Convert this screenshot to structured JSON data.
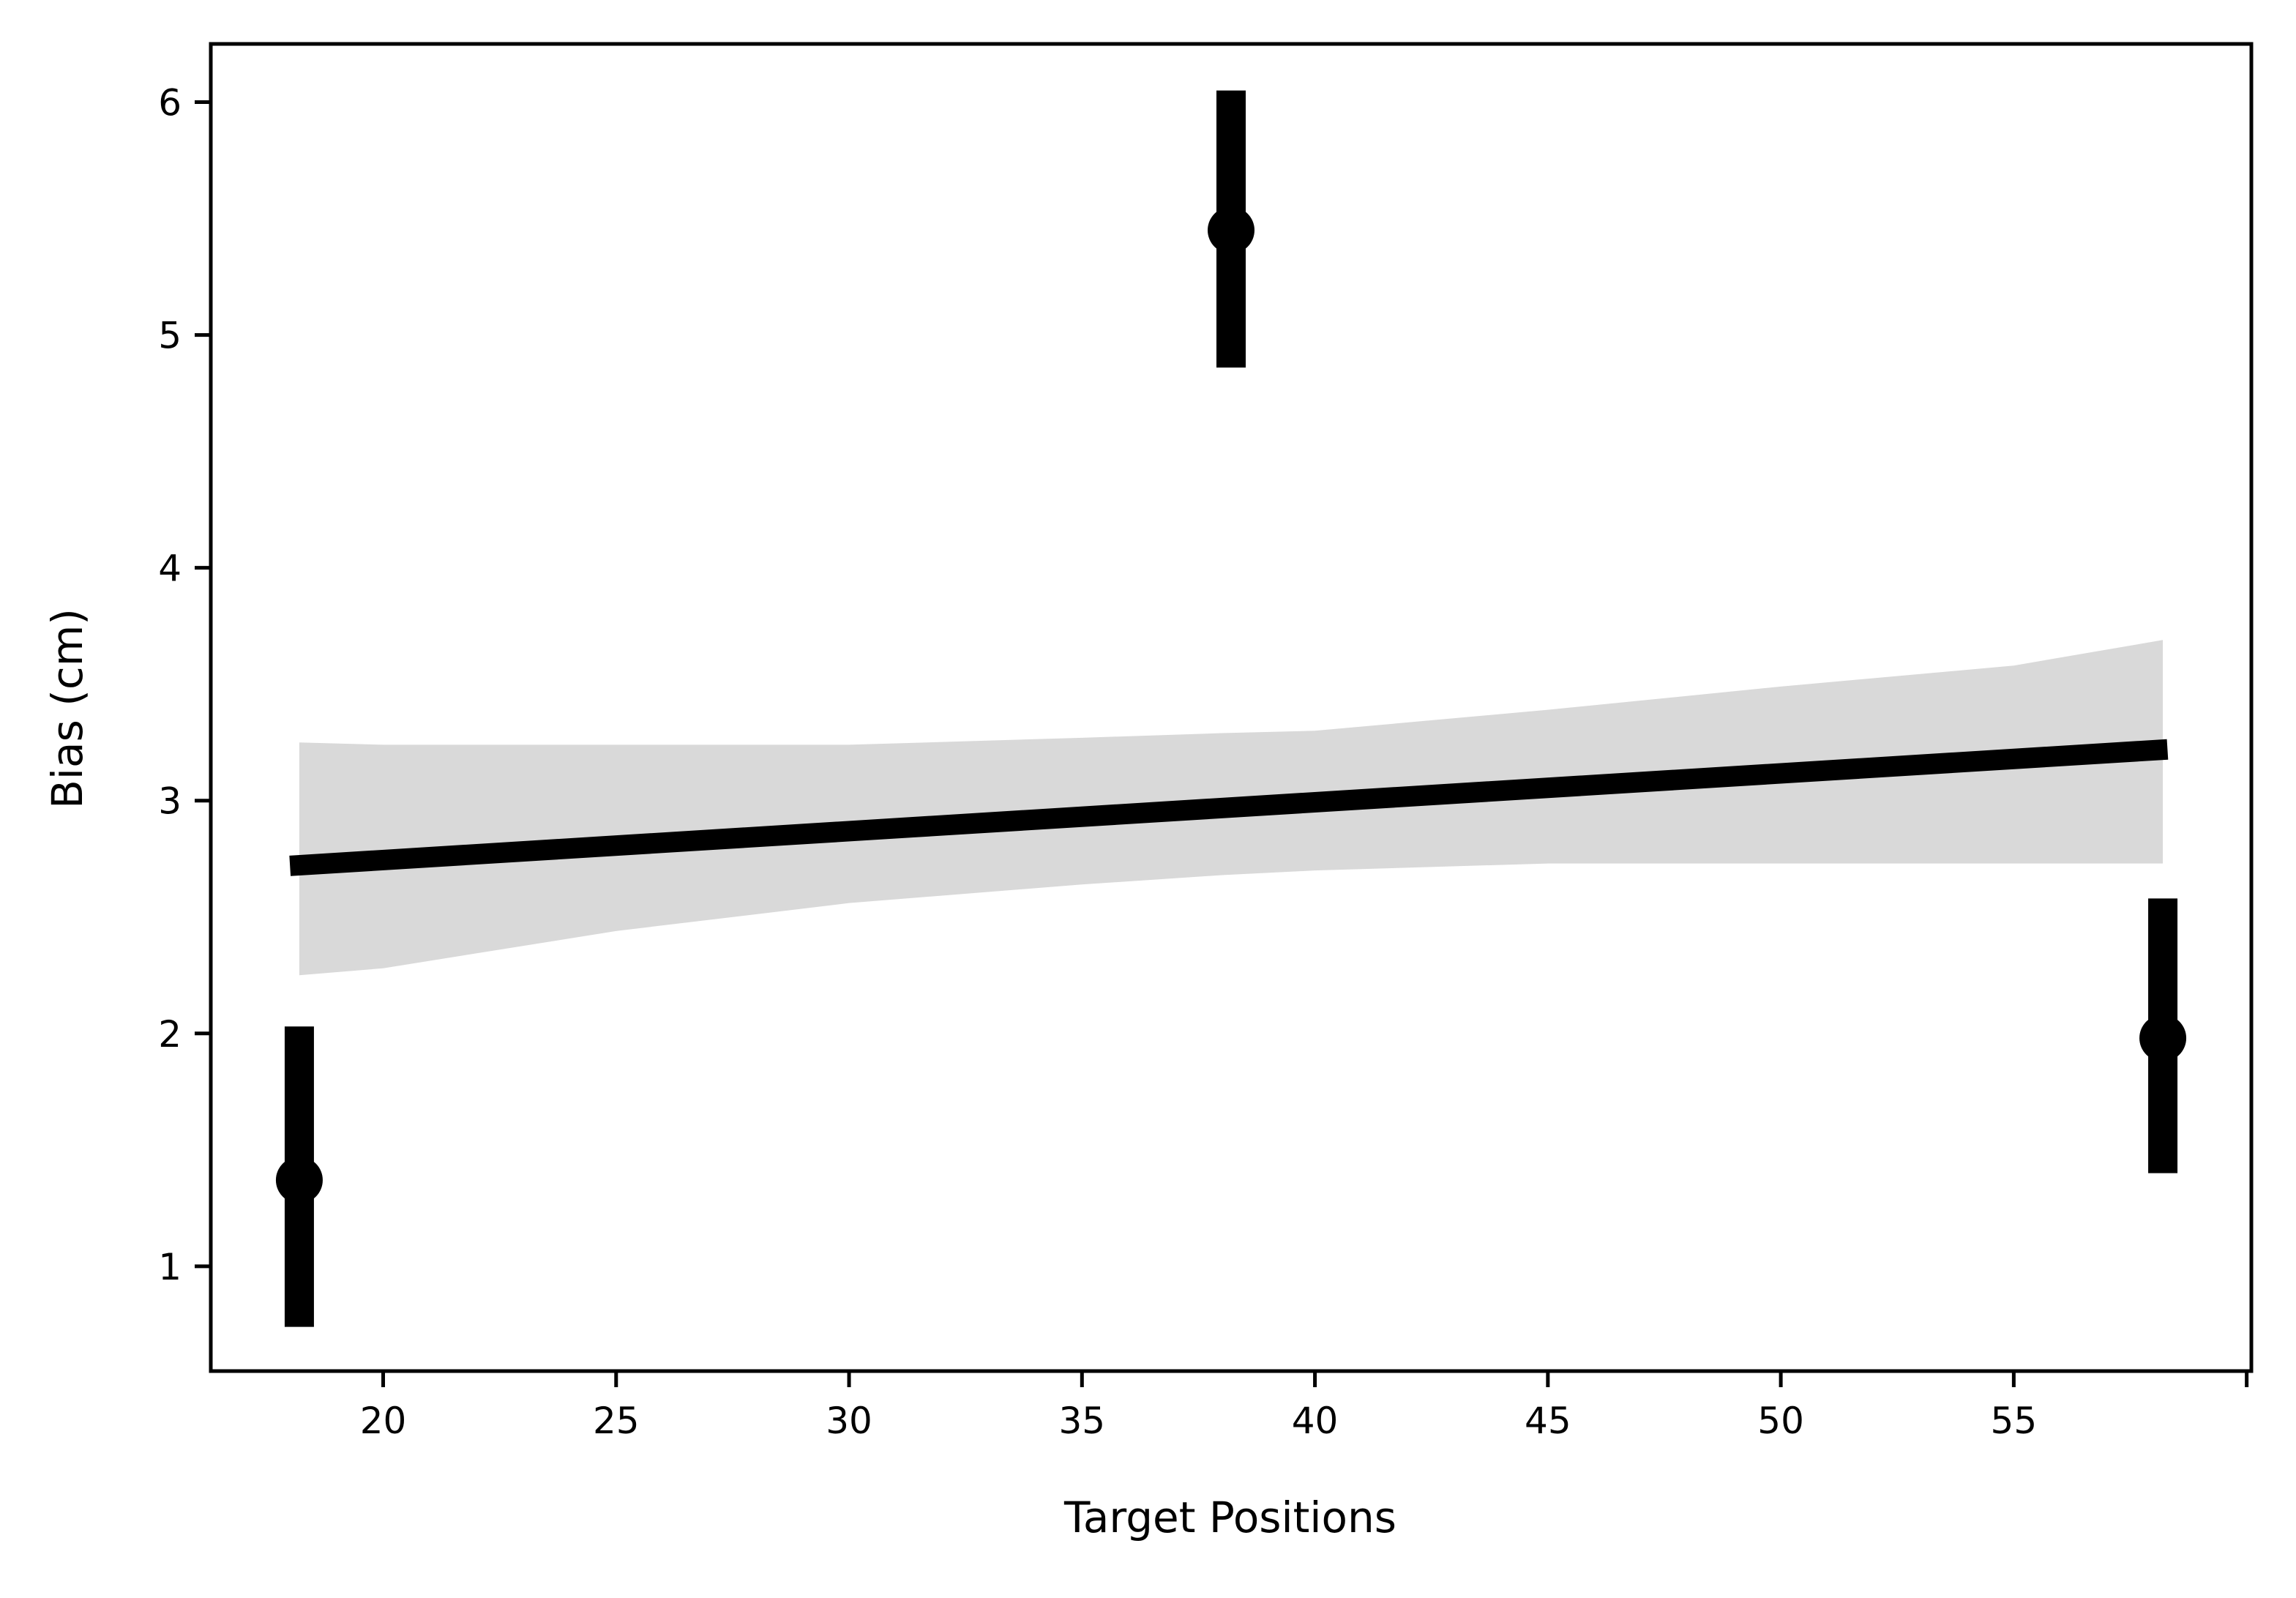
{
  "chart_data": {
    "type": "scatter",
    "title": "",
    "xlabel": "Target Positions",
    "ylabel": "Bias (cm)",
    "xlim": [
      16.3,
      60.1
    ],
    "ylim": [
      0.55,
      6.25
    ],
    "x_ticks": [
      20,
      25,
      30,
      35,
      40,
      45,
      50,
      55,
      60
    ],
    "x_tick_labels": [
      "20",
      "25",
      "30",
      "35",
      "40",
      "45",
      "50",
      "55",
      ""
    ],
    "y_ticks": [
      1,
      2,
      3,
      4,
      5,
      6
    ],
    "y_tick_labels": [
      "1",
      "2",
      "3",
      "4",
      "5",
      "6"
    ],
    "grid": false,
    "legend": "none",
    "series": [
      {
        "kind": "points_with_error_bars",
        "points": [
          {
            "x": 18.2,
            "y": 1.37,
            "y_low": 0.74,
            "y_high": 2.03
          },
          {
            "x": 38.2,
            "y": 5.45,
            "y_low": 4.86,
            "y_high": 6.05
          },
          {
            "x": 58.2,
            "y": 1.98,
            "y_low": 1.4,
            "y_high": 2.58
          }
        ],
        "color": "#000000"
      },
      {
        "kind": "regression_line",
        "x": [
          18.0,
          58.3
        ],
        "y": [
          2.72,
          3.22
        ],
        "color": "#000000"
      },
      {
        "kind": "confidence_band",
        "color": "#d9d9d9",
        "x": [
          18.2,
          20,
          25,
          30,
          35,
          38,
          40,
          45,
          50,
          55,
          58.2
        ],
        "lower": [
          2.25,
          2.28,
          2.44,
          2.56,
          2.64,
          2.68,
          2.7,
          2.73,
          2.73,
          2.73,
          2.73
        ],
        "upper": [
          3.25,
          3.24,
          3.24,
          3.24,
          3.27,
          3.29,
          3.3,
          3.39,
          3.49,
          3.58,
          3.69
        ]
      }
    ]
  }
}
